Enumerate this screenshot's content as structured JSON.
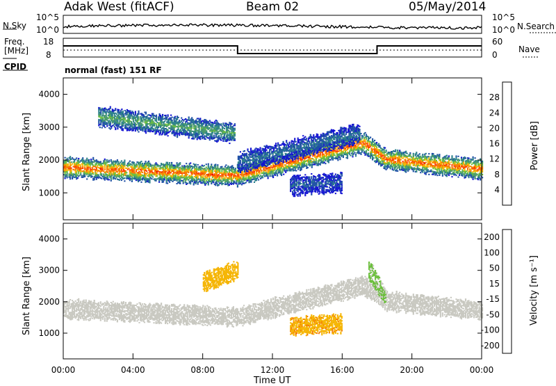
{
  "header": {
    "station": "Adak West (fitACF)",
    "beam": "Beam 02",
    "date": "05/May/2014"
  },
  "noise_panel": {
    "left_label": "N.Sky",
    "right_label": "N.Search",
    "left_ticks": [
      "10^5",
      "10^0"
    ],
    "right_ticks": [
      "10^5",
      "10^0"
    ]
  },
  "freq_panel": {
    "left_label_1": "Freq.",
    "left_label_2": "[MHz]",
    "right_label": "Nave",
    "left_ticks": [
      "18",
      "8"
    ],
    "right_ticks": [
      "60",
      "0"
    ],
    "cpid_label": "CPID",
    "cpid_text": "normal (fast) 151 RF"
  },
  "colors": {
    "power_scale": [
      "#1414d2",
      "#1e4fa6",
      "#2a7f8a",
      "#4a9a6a",
      "#6abf3a",
      "#f5b400",
      "#f57a00",
      "#ff3a00",
      "#e00000"
    ],
    "velocity_scale": [
      "#e00000",
      "#f04000",
      "#f57a00",
      "#f5b400",
      "#c8c8c0",
      "#6abf3a",
      "#2ea02e",
      "#1e4fa6",
      "#1414d2"
    ]
  },
  "chart_data": [
    {
      "type": "heatmap",
      "title": "",
      "xlabel": "Time UT",
      "ylabel": "Slant Range [km]",
      "x_ticks": [
        "00:00",
        "04:00",
        "08:00",
        "12:00",
        "16:00",
        "20:00",
        "00:00"
      ],
      "y_ticks": [
        "1000",
        "2000",
        "3000",
        "4000"
      ],
      "xlim_hours": [
        0,
        24
      ],
      "ylim_km": [
        180,
        4500
      ],
      "colorbar_label": "Power [dB]",
      "colorbar_ticks": [
        "4",
        "8",
        "12",
        "16",
        "20",
        "24",
        "28"
      ],
      "colorbar_range": [
        0,
        32
      ],
      "bands": [
        {
          "hours": [
            0,
            10,
            17.2,
            18.5,
            24
          ],
          "range_km": [
            1750,
            1500,
            2500,
            2000,
            1700
          ],
          "value": 26
        },
        {
          "hours": [
            2,
            9.8
          ],
          "range_km": [
            3300,
            2800
          ],
          "value": 14
        },
        {
          "hours": [
            10,
            17
          ],
          "range_km": [
            1900,
            2800
          ],
          "value": 8
        },
        {
          "hours": [
            13,
            16
          ],
          "range_km": [
            1200,
            1300
          ],
          "value": 6
        }
      ]
    },
    {
      "type": "heatmap",
      "title": "",
      "xlabel": "Time UT",
      "ylabel": "Slant Range [km]",
      "x_ticks": [
        "00:00",
        "04:00",
        "08:00",
        "12:00",
        "16:00",
        "20:00",
        "00:00"
      ],
      "y_ticks": [
        "1000",
        "2000",
        "3000",
        "4000"
      ],
      "xlim_hours": [
        0,
        24
      ],
      "ylim_km": [
        180,
        4500
      ],
      "colorbar_label": "Velocity [m s⁻¹]",
      "colorbar_ticks": [
        "200",
        "100",
        "50",
        "15",
        "-15",
        "-50",
        "-100",
        "-200"
      ],
      "colorbar_range": [
        -250,
        250
      ],
      "bands": [
        {
          "hours": [
            0,
            10,
            17.2,
            18.5,
            24
          ],
          "range_km": [
            1750,
            1500,
            2500,
            2000,
            1700
          ],
          "value": 0
        },
        {
          "hours": [
            8,
            10
          ],
          "range_km": [
            2600,
            3000
          ],
          "value": -60
        },
        {
          "hours": [
            13,
            16
          ],
          "range_km": [
            1200,
            1300
          ],
          "value": -70
        },
        {
          "hours": [
            17.5,
            18.5
          ],
          "range_km": [
            3000,
            2100
          ],
          "value": 40
        }
      ]
    }
  ]
}
